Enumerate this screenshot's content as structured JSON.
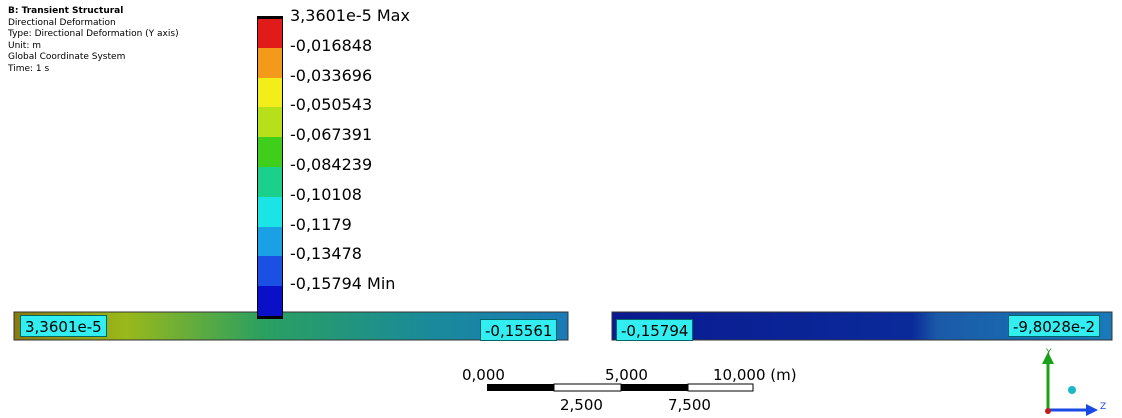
{
  "header": {
    "title": "B: Transient Structural",
    "lines": [
      "Directional Deformation",
      "Type: Directional Deformation (Y axis)",
      "Unit: m",
      "Global Coordinate System",
      "Time: 1 s"
    ]
  },
  "legend": {
    "labels": [
      "3,3601e-5 Max",
      "-0,016848",
      "-0,033696",
      "-0,050543",
      "-0,067391",
      "-0,084239",
      "-0,10108",
      "-0,1179",
      "-0,13478",
      "-0,15794 Min"
    ],
    "colors": [
      "#e11a1a",
      "#f39a1a",
      "#f3ee1a",
      "#b5e01a",
      "#3fcf1a",
      "#1ad08a",
      "#1ae4e4",
      "#1aa0e4",
      "#1a50e4",
      "#0a10c8"
    ]
  },
  "probes": [
    "3,3601e-5",
    "-0,15561",
    "-0,15794",
    "-9,8028e-2"
  ],
  "scale": {
    "top": [
      "0,000",
      "5,000",
      "10,000 (m)"
    ],
    "bottom": [
      "2,500",
      "7,500"
    ]
  },
  "axes": {
    "y": "Y",
    "z": "Z"
  }
}
